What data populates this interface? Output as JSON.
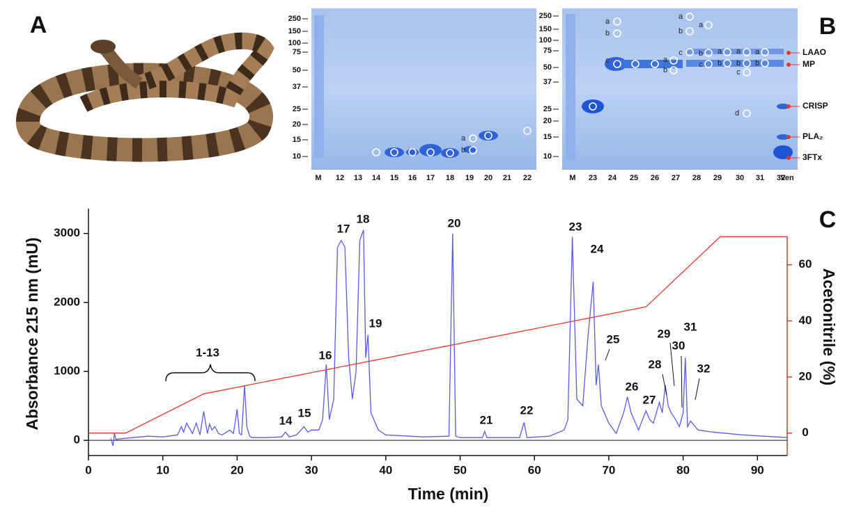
{
  "panel_labels": [
    "A",
    "B",
    "C"
  ],
  "gel_left": {
    "markers": [
      "250",
      "150",
      "100",
      "75",
      "50",
      "37",
      "25",
      "20",
      "15",
      "10"
    ],
    "lanes": [
      "M",
      "12",
      "13",
      "14",
      "15",
      "16",
      "17",
      "18",
      "19",
      "20",
      "21",
      "22"
    ],
    "band_labels": [
      "a",
      "b"
    ]
  },
  "gel_right": {
    "markers": [
      "250",
      "150",
      "100",
      "75",
      "50",
      "37",
      "25",
      "20",
      "15",
      "10"
    ],
    "lanes": [
      "M",
      "23",
      "24",
      "25",
      "26",
      "27",
      "28",
      "29",
      "30",
      "31",
      "32",
      "Ven"
    ],
    "band_labels": [
      "a",
      "b",
      "c",
      "a",
      "b",
      "a",
      "b",
      "c",
      "a",
      "b",
      "c",
      "a",
      "b",
      "a",
      "b",
      "c",
      "d",
      "a",
      "b"
    ],
    "proteins": [
      "LAAO",
      "MP",
      "CRISP",
      "PLA₂",
      "3FTx"
    ]
  },
  "chart_data": {
    "type": "line",
    "x_label": "Time (min)",
    "y_label": "Absorbance 215 nm (mU)",
    "y2_label": "Acetonitrile (%)",
    "xlim": [
      0,
      94
    ],
    "xticks": [
      0,
      10,
      20,
      30,
      40,
      50,
      60,
      70,
      80,
      90
    ],
    "ylim": [
      -220,
      3360
    ],
    "yticks": [
      0,
      1000,
      2000,
      3000
    ],
    "y2lim": [
      -8,
      80
    ],
    "y2ticks": [
      0,
      20,
      40,
      60
    ],
    "peak_labels": [
      "1-13",
      "14",
      "15",
      "16",
      "17",
      "18",
      "19",
      "20",
      "21",
      "22",
      "23",
      "24",
      "25",
      "26",
      "27",
      "28",
      "29",
      "30",
      "31",
      "32"
    ],
    "series": [
      {
        "color": "#5a5af0",
        "x": [
          3,
          3.3,
          3.5,
          3.7,
          4,
          6,
          8,
          10,
          12,
          12.5,
          12.8,
          13.2,
          14,
          14.5,
          15,
          15.5,
          16,
          16.3,
          16.6,
          17,
          17.5,
          18,
          19,
          19.5,
          20,
          20.3,
          20.6,
          21,
          21.3,
          21.7,
          22,
          24,
          26,
          26.5,
          27,
          28,
          29,
          29.5,
          30,
          31,
          31.5,
          32,
          32.4,
          33,
          33.5,
          34,
          34.5,
          35,
          35.5,
          36,
          36.5,
          37,
          37.3,
          37.6,
          38,
          39,
          40,
          45,
          48.5,
          49,
          49.4,
          50,
          53,
          53.3,
          53.6,
          58,
          58.6,
          59,
          62,
          64,
          64.5,
          65.1,
          65.7,
          66.5,
          67.2,
          67.9,
          68.3,
          68.6,
          69,
          70,
          71,
          72,
          72.5,
          73,
          74,
          75,
          75.5,
          76,
          76.8,
          77.2,
          77.6,
          78,
          78.4,
          79,
          79.5,
          80,
          80.3,
          80.6,
          81,
          82,
          84,
          88,
          94
        ],
        "values": [
          30,
          -80,
          100,
          10,
          20,
          40,
          60,
          50,
          80,
          200,
          120,
          250,
          100,
          250,
          80,
          420,
          100,
          240,
          150,
          200,
          100,
          80,
          150,
          100,
          450,
          100,
          80,
          800,
          200,
          60,
          40,
          40,
          50,
          120,
          50,
          80,
          200,
          120,
          150,
          150,
          300,
          1100,
          300,
          600,
          2800,
          2900,
          2800,
          1200,
          600,
          1000,
          2900,
          3050,
          1200,
          1530,
          400,
          150,
          80,
          50,
          60,
          3000,
          60,
          40,
          40,
          130,
          40,
          40,
          260,
          40,
          60,
          150,
          300,
          2950,
          600,
          500,
          1500,
          2300,
          800,
          1100,
          500,
          250,
          100,
          400,
          630,
          400,
          150,
          430,
          300,
          250,
          550,
          400,
          800,
          500,
          400,
          300,
          200,
          400,
          1200,
          200,
          280,
          150,
          120,
          80,
          40
        ]
      },
      {
        "color": "#e8362b",
        "axis": "y2",
        "x": [
          0,
          5,
          15.5,
          75,
          85,
          94
        ],
        "values": [
          0,
          0,
          14,
          45,
          70,
          70
        ]
      }
    ]
  }
}
